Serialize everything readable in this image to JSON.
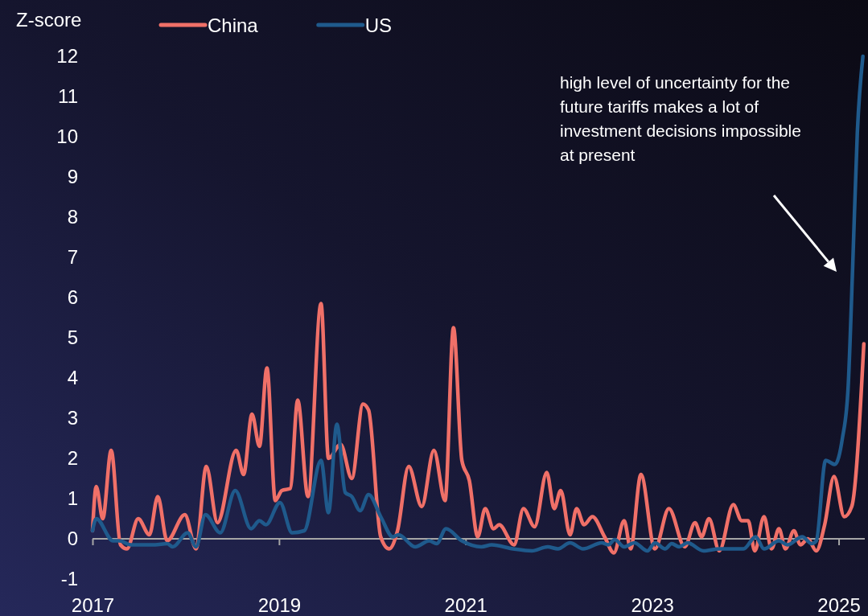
{
  "chart_data": {
    "type": "line",
    "ylabel": "Z-score",
    "xlim": [
      2017,
      2025.28
    ],
    "xticks": [
      2017,
      2019,
      2021,
      2023,
      2025
    ],
    "ylim": [
      -1,
      12
    ],
    "yticks": [
      -1,
      0,
      1,
      2,
      3,
      4,
      5,
      6,
      7,
      8,
      9,
      10,
      11,
      12
    ],
    "grid": false,
    "legend": "top",
    "marker": "none",
    "line_style": "solid",
    "annotations": [
      "high level of uncertainty for the future tariffs makes a lot of investment decisions impossible at present"
    ],
    "ref_lines": [
      {
        "axis": "y",
        "value": 0,
        "color": "#a6a6a6"
      }
    ],
    "series": [
      {
        "name": "China",
        "color": "#f07068",
        "x": [
          2017.0,
          2017.04,
          2017.11,
          2017.2,
          2017.3,
          2017.37,
          2017.49,
          2017.61,
          2017.7,
          2017.8,
          2017.99,
          2018.11,
          2018.22,
          2018.34,
          2018.54,
          2018.62,
          2018.71,
          2018.79,
          2018.87,
          2018.96,
          2019.03,
          2019.12,
          2019.2,
          2019.31,
          2019.45,
          2019.53,
          2019.66,
          2019.78,
          2019.9,
          2019.96,
          2020.09,
          2020.18,
          2020.27,
          2020.39,
          2020.53,
          2020.66,
          2020.78,
          2020.87,
          2020.96,
          2021.04,
          2021.13,
          2021.21,
          2021.3,
          2021.36,
          2021.52,
          2021.62,
          2021.74,
          2021.87,
          2021.95,
          2022.02,
          2022.12,
          2022.19,
          2022.27,
          2022.36,
          2022.49,
          2022.59,
          2022.7,
          2022.77,
          2022.88,
          2023.03,
          2023.18,
          2023.35,
          2023.46,
          2023.53,
          2023.61,
          2023.72,
          2023.87,
          2023.96,
          2024.03,
          2024.1,
          2024.2,
          2024.28,
          2024.36,
          2024.43,
          2024.52,
          2024.59,
          2024.67,
          2024.76,
          2024.85,
          2024.95,
          2025.06,
          2025.14,
          2025.27
        ],
        "values": [
          0.2,
          1.3,
          0.5,
          2.2,
          -0.15,
          -0.25,
          0.5,
          0.1,
          1.05,
          -0.05,
          0.6,
          -0.25,
          1.8,
          0.4,
          2.2,
          1.6,
          3.1,
          2.3,
          4.25,
          0.95,
          1.2,
          1.25,
          3.45,
          1.05,
          5.85,
          2.0,
          2.35,
          1.5,
          3.35,
          3.2,
          0.05,
          -0.25,
          0.2,
          1.8,
          0.8,
          2.2,
          0.95,
          5.25,
          1.95,
          1.45,
          0.05,
          0.75,
          0.25,
          0.35,
          -0.15,
          0.75,
          0.3,
          1.65,
          0.75,
          1.2,
          0.1,
          0.75,
          0.35,
          0.55,
          0.05,
          -0.35,
          0.45,
          -0.25,
          1.6,
          -0.25,
          0.75,
          -0.2,
          0.4,
          0.05,
          0.5,
          -0.3,
          0.85,
          0.45,
          0.45,
          -0.3,
          0.55,
          -0.25,
          0.25,
          -0.25,
          0.2,
          -0.15,
          0,
          -0.3,
          0.35,
          1.55,
          0.55,
          0.8,
          4.85
        ]
      },
      {
        "name": "US",
        "color": "#1f5a8c",
        "x": [
          2017.0,
          2017.04,
          2017.22,
          2017.29,
          2017.41,
          2017.67,
          2017.8,
          2017.86,
          2018.02,
          2018.11,
          2018.21,
          2018.37,
          2018.53,
          2018.7,
          2018.79,
          2018.86,
          2019.01,
          2019.14,
          2019.27,
          2019.45,
          2019.53,
          2019.62,
          2019.71,
          2019.78,
          2019.87,
          2019.96,
          2020.09,
          2020.22,
          2020.28,
          2020.46,
          2020.61,
          2020.69,
          2020.79,
          2020.96,
          2021.17,
          2021.28,
          2021.51,
          2021.71,
          2021.88,
          2021.99,
          2022.12,
          2022.26,
          2022.46,
          2022.53,
          2022.6,
          2022.7,
          2022.81,
          2022.95,
          2023.03,
          2023.14,
          2023.21,
          2023.29,
          2023.38,
          2023.55,
          2023.72,
          2023.98,
          2024.11,
          2024.2,
          2024.36,
          2024.45,
          2024.61,
          2024.71,
          2024.76,
          2024.86,
          2024.96,
          2025.04,
          2025.1,
          2025.15,
          2025.2,
          2025.26
        ],
        "values": [
          0.2,
          0.5,
          -0.05,
          -0.05,
          -0.15,
          -0.15,
          -0.12,
          -0.2,
          0.15,
          -0.2,
          0.6,
          0.15,
          1.2,
          0.25,
          0.45,
          0.35,
          0.9,
          0.15,
          0.2,
          1.95,
          0.65,
          2.85,
          1.15,
          1.05,
          0.7,
          1.1,
          0.55,
          0.05,
          0.1,
          -0.2,
          -0.05,
          -0.12,
          0.25,
          -0.05,
          -0.2,
          -0.15,
          -0.25,
          -0.3,
          -0.2,
          -0.25,
          -0.1,
          -0.25,
          -0.1,
          -0.15,
          -0.02,
          -0.2,
          -0.1,
          -0.3,
          -0.1,
          -0.25,
          -0.12,
          -0.2,
          -0.1,
          -0.3,
          -0.25,
          -0.25,
          0.05,
          -0.25,
          -0.05,
          -0.15,
          0.05,
          -0.12,
          -0.05,
          1.95,
          1.85,
          2.5,
          3.7,
          6.75,
          10.1,
          12
        ]
      }
    ]
  }
}
